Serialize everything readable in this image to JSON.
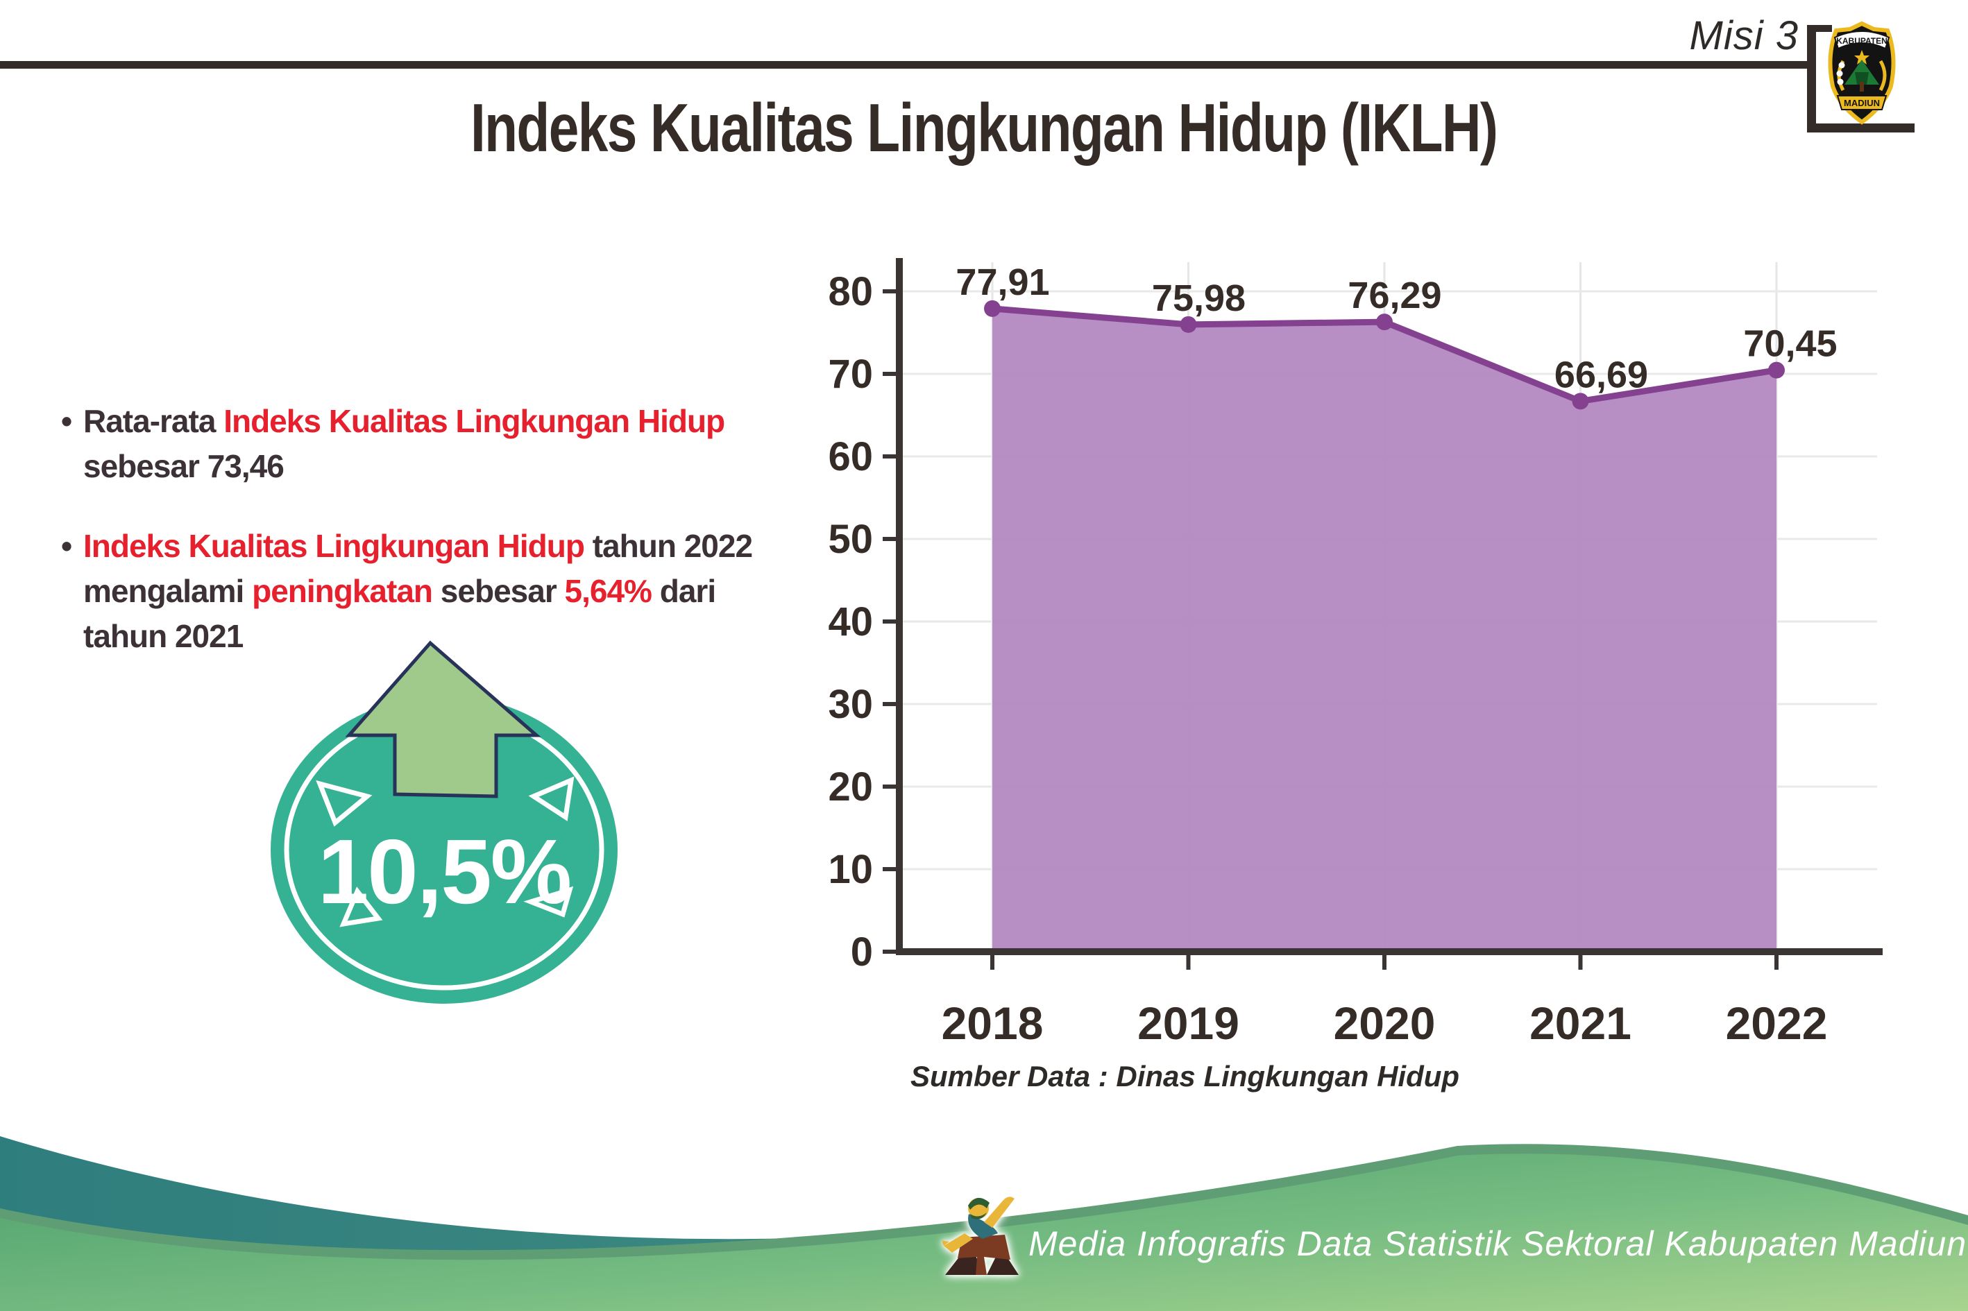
{
  "header": {
    "misi_label": "Misi 3",
    "title": "Indeks Kualitas Lingkungan Hidup (IKLH)",
    "logo": {
      "top_text": "KABUPATEN",
      "bottom_text": "MADIUN"
    }
  },
  "bullets": [
    {
      "lines": [
        [
          {
            "t": "Rata-rata ",
            "c": "dark"
          },
          {
            "t": "Indeks Kualitas Lingkungan Hidup",
            "c": "red"
          }
        ],
        [
          {
            "t": "sebesar 73,46",
            "c": "dark"
          }
        ]
      ]
    },
    {
      "lines": [
        [
          {
            "t": "Indeks Kualitas Lingkungan Hidup",
            "c": "red"
          },
          {
            "t": " tahun 2022",
            "c": "dark"
          }
        ],
        [
          {
            "t": "mengalami ",
            "c": "dark"
          },
          {
            "t": "peningkatan",
            "c": "red"
          },
          {
            "t": " sebesar ",
            "c": "dark"
          },
          {
            "t": "5,64%",
            "c": "red"
          },
          {
            "t": " dari",
            "c": "dark"
          }
        ],
        [
          {
            "t": "tahun 2021",
            "c": "dark"
          }
        ]
      ]
    }
  ],
  "badge": {
    "value": "10,5%"
  },
  "chart_data": {
    "type": "area",
    "title": "",
    "categories": [
      "2018",
      "2019",
      "2020",
      "2021",
      "2022"
    ],
    "values": [
      77.91,
      75.98,
      76.29,
      66.69,
      70.45
    ],
    "value_labels": [
      "77,91",
      "75,98",
      "76,29",
      "66,69",
      "70,45"
    ],
    "xlabel": "",
    "ylabel": "",
    "ylim": [
      0,
      80
    ],
    "ytick_step": 10,
    "grid": true,
    "legend": "none",
    "source_note": "Sumber Data : Dinas Lingkungan Hidup",
    "colors": {
      "area": "#b287bf",
      "line": "#84418f"
    }
  },
  "footer": {
    "caption": "Media Infografis Data Statistik Sektoral Kabupaten Madiun |"
  },
  "colors": {
    "dark_text": "#3b3136",
    "red_text": "#e7202e",
    "badge_teal": "#35b293",
    "arrow_green": "#a0c98c",
    "footer_teal": "#317e7e",
    "footer_green": "#4d9f6d"
  }
}
